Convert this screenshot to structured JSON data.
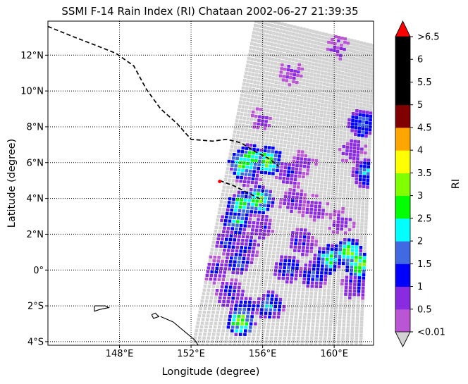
{
  "chart_data": {
    "type": "heatmap",
    "title": "SSMI F-14 Rain Index (RI) Chataan 2002-06-27 21:39:35",
    "xlabel": "Longitude (degree)",
    "ylabel": "Latitude (degree)",
    "xlim": [
      144.0,
      162.2
    ],
    "ylim": [
      -4.2,
      13.9
    ],
    "x_ticks": [
      148,
      152,
      156,
      160
    ],
    "x_tick_labels": [
      "148°E",
      "152°E",
      "156°E",
      "160°E"
    ],
    "y_ticks": [
      12,
      10,
      8,
      6,
      4,
      2,
      0,
      -2,
      -4
    ],
    "y_tick_labels": [
      "12°N",
      "10°N",
      "8°N",
      "6°N",
      "4°N",
      "2°N",
      "0°",
      "2°S",
      "4°S"
    ],
    "grid": "dotted",
    "colorbar": {
      "label": "RI",
      "boundaries": [
        0.01,
        0.5,
        1,
        1.5,
        2,
        2.5,
        3,
        3.5,
        4,
        4.5,
        5,
        5.5,
        6,
        6.5
      ],
      "tick_labels": [
        "<0.01",
        "0.5",
        "1",
        "1.5",
        "2",
        "2.5",
        "3",
        "3.5",
        "4",
        "4.5",
        "5",
        "5.5",
        "6",
        ">6.5"
      ],
      "colors": [
        "#ba55d3",
        "#8a2be2",
        "#0000ff",
        "#4169e1",
        "#00ffff",
        "#00ff00",
        "#7fff00",
        "#ffff00",
        "#ffa500",
        "#800000",
        "#000000",
        "#000000",
        "#000000"
      ],
      "under_color": "#d3d3d3",
      "over_color": "#ff0000"
    },
    "swath": {
      "corners_lonlat": [
        [
          155.6,
          14.2
        ],
        [
          162.3,
          12.6
        ],
        [
          161.6,
          -4.3
        ],
        [
          152.0,
          -4.3
        ]
      ],
      "no_rain_color": "#d3d3d3"
    },
    "rain_cells": [
      {
        "lon": 154.9,
        "lat": 5.9,
        "ri": 3.0
      },
      {
        "lon": 155.3,
        "lat": 6.2,
        "ri": 2.8
      },
      {
        "lon": 156.3,
        "lat": 6.1,
        "ri": 3.1
      },
      {
        "lon": 155.2,
        "lat": 5.4,
        "ri": 1.2
      },
      {
        "lon": 157.5,
        "lat": 5.4,
        "ri": 1.0
      },
      {
        "lon": 154.8,
        "lat": 3.6,
        "ri": 2.8
      },
      {
        "lon": 155.8,
        "lat": 3.9,
        "ri": 3.0
      },
      {
        "lon": 154.5,
        "lat": 2.7,
        "ri": 2.2
      },
      {
        "lon": 155.9,
        "lat": 2.4,
        "ri": 1.0
      },
      {
        "lon": 154.1,
        "lat": 1.6,
        "ri": 1.3
      },
      {
        "lon": 155.1,
        "lat": 1.3,
        "ri": 1.2
      },
      {
        "lon": 154.6,
        "lat": 0.5,
        "ri": 1.7
      },
      {
        "lon": 153.4,
        "lat": 0.0,
        "ri": 1.0
      },
      {
        "lon": 154.2,
        "lat": -1.3,
        "ri": 1.3
      },
      {
        "lon": 155.0,
        "lat": -2.2,
        "ri": 1.6
      },
      {
        "lon": 154.8,
        "lat": -2.9,
        "ri": 3.1
      },
      {
        "lon": 156.4,
        "lat": -2.0,
        "ri": 1.9
      },
      {
        "lon": 157.4,
        "lat": 0.1,
        "ri": 1.6
      },
      {
        "lon": 158.2,
        "lat": 1.6,
        "ri": 1.2
      },
      {
        "lon": 158.9,
        "lat": -0.3,
        "ri": 1.6
      },
      {
        "lon": 159.7,
        "lat": 0.6,
        "ri": 2.6
      },
      {
        "lon": 160.8,
        "lat": 1.0,
        "ri": 2.9
      },
      {
        "lon": 161.4,
        "lat": 0.3,
        "ri": 3.2
      },
      {
        "lon": 161.2,
        "lat": -0.9,
        "ri": 1.2
      },
      {
        "lon": 157.7,
        "lat": 3.9,
        "ri": 0.9
      },
      {
        "lon": 158.3,
        "lat": 6.0,
        "ri": 0.7
      },
      {
        "lon": 161.6,
        "lat": 8.2,
        "ri": 2.0
      },
      {
        "lon": 161.8,
        "lat": 5.4,
        "ri": 1.8
      },
      {
        "lon": 161.0,
        "lat": 6.7,
        "ri": 0.8
      },
      {
        "lon": 157.6,
        "lat": 11.0,
        "ri": 0.6
      },
      {
        "lon": 160.2,
        "lat": 12.4,
        "ri": 0.6
      },
      {
        "lon": 155.9,
        "lat": 8.4,
        "ri": 0.6
      },
      {
        "lon": 158.9,
        "lat": 3.4,
        "ri": 0.8
      },
      {
        "lon": 160.4,
        "lat": 2.7,
        "ri": 0.7
      }
    ],
    "storm_track_lonlat": [
      [
        144.0,
        13.6
      ],
      [
        145.5,
        13.0
      ],
      [
        146.8,
        12.5
      ],
      [
        147.8,
        12.1
      ],
      [
        148.8,
        11.4
      ],
      [
        149.5,
        10.1
      ],
      [
        150.3,
        9.0
      ],
      [
        151.2,
        8.2
      ],
      [
        152.0,
        7.3
      ],
      [
        153.2,
        7.2
      ],
      [
        154.0,
        7.3
      ],
      [
        154.8,
        7.1
      ],
      [
        155.6,
        6.6
      ],
      [
        156.4,
        6.2
      ],
      [
        156.9,
        5.8
      ]
    ],
    "storm_track_ext_lonlat": [
      [
        153.6,
        5.0
      ],
      [
        154.4,
        4.7
      ],
      [
        155.2,
        4.3
      ],
      [
        156.0,
        3.9
      ]
    ],
    "storm_marker_lonlat": [
      153.6,
      4.95
    ],
    "coastlines_lonlat": [
      [
        [
          150.3,
          -2.6
        ],
        [
          151.0,
          -2.9
        ],
        [
          151.6,
          -3.4
        ],
        [
          152.2,
          -3.9
        ],
        [
          152.4,
          -4.2
        ]
      ],
      [
        [
          149.8,
          -2.5
        ],
        [
          150.0,
          -2.4
        ],
        [
          150.2,
          -2.6
        ],
        [
          149.9,
          -2.7
        ],
        [
          149.8,
          -2.5
        ]
      ],
      [
        [
          146.6,
          -2.0
        ],
        [
          147.2,
          -2.0
        ],
        [
          147.4,
          -2.1
        ],
        [
          146.9,
          -2.2
        ],
        [
          146.6,
          -2.3
        ],
        [
          146.6,
          -2.0
        ]
      ]
    ]
  }
}
